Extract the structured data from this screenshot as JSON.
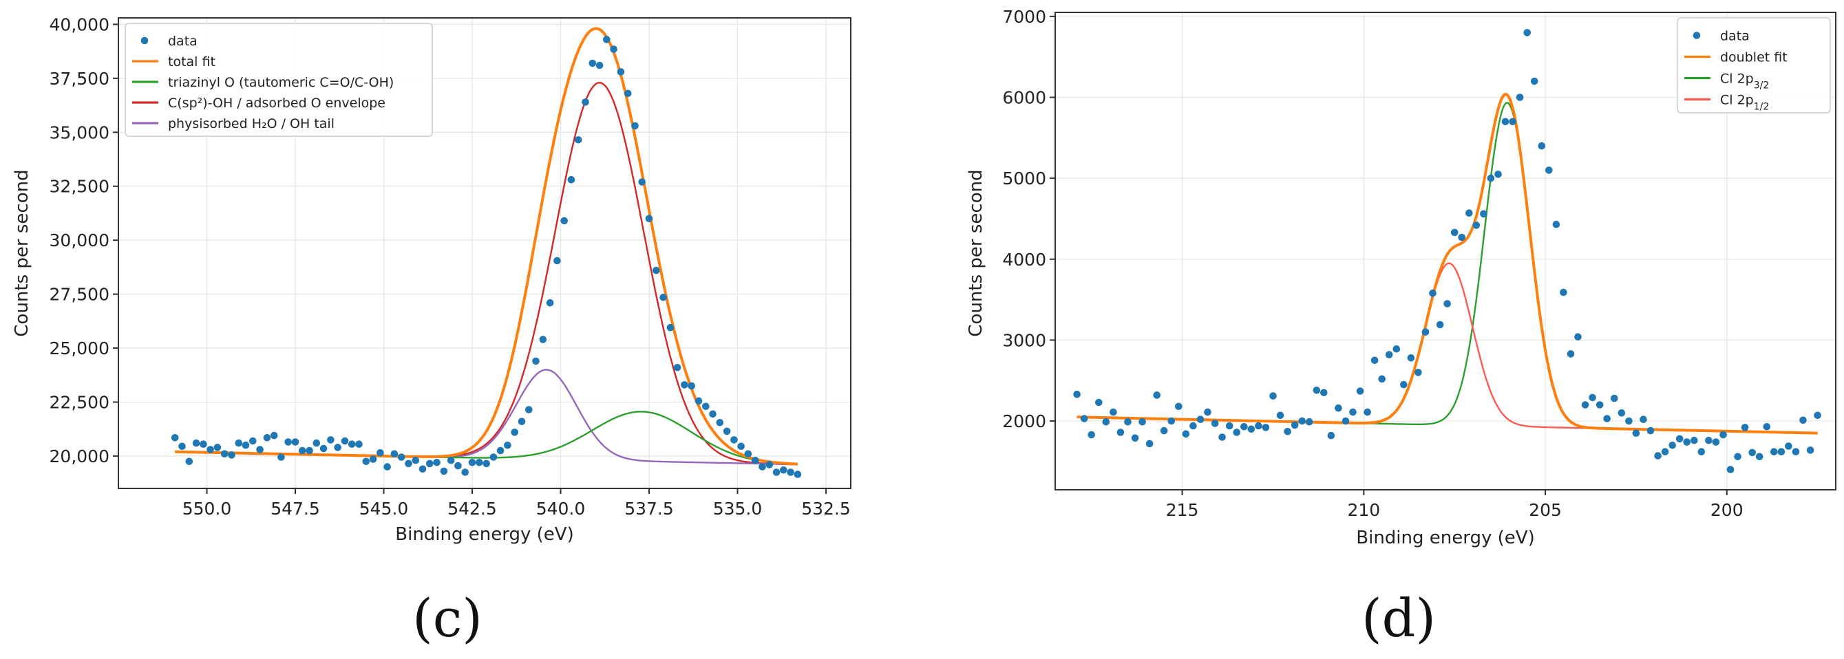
{
  "chart_data": [
    {
      "type": "scatter",
      "panel_label": "(c)",
      "xlabel": "Binding energy (eV)",
      "ylabel": "Counts per second",
      "xlim": [
        552.5,
        531.8
      ],
      "ylim": [
        18500,
        40300
      ],
      "x_reversed": true,
      "grid": true,
      "legend": "top-left",
      "xticks": [
        550,
        547.5,
        545,
        542.5,
        540,
        537.5,
        535,
        532.5
      ],
      "xtick_labels": [
        "550.0",
        "547.5",
        "545.0",
        "542.5",
        "540.0",
        "537.5",
        "535.0",
        "532.5"
      ],
      "yticks": [
        20000,
        22500,
        25000,
        27500,
        30000,
        32500,
        35000,
        37500,
        40000
      ],
      "ytick_labels": [
        "20,000",
        "22,500",
        "25,000",
        "27,500",
        "30,000",
        "32,500",
        "35,000",
        "37,500",
        "40,000"
      ],
      "legend_entries": [
        {
          "label": "data",
          "color": "#1f77b4",
          "kind": "marker"
        },
        {
          "label": "total fit",
          "color": "#ff7f0e",
          "kind": "line"
        },
        {
          "label": "triazinyl O (tautomeric C=O/C-OH)",
          "color": "#2ca02c",
          "kind": "line"
        },
        {
          "label": "C(sp²)-OH / adsorbed O envelope",
          "color": "#d62728",
          "kind": "line"
        },
        {
          "label": "physisorbed H₂O / OH tail",
          "color": "#9467bd",
          "kind": "line"
        }
      ],
      "data": {
        "name": "data",
        "color": "#1f77b4",
        "x": [
          550.9,
          550.7,
          550.5,
          550.3,
          550.1,
          549.9,
          549.7,
          549.5,
          549.3,
          549.1,
          548.9,
          548.7,
          548.5,
          548.3,
          548.1,
          547.9,
          547.7,
          547.5,
          547.3,
          547.1,
          546.9,
          546.7,
          546.5,
          546.3,
          546.1,
          545.9,
          545.7,
          545.5,
          545.3,
          545.1,
          544.9,
          544.7,
          544.5,
          544.3,
          544.1,
          543.9,
          543.7,
          543.5,
          543.3,
          543.1,
          542.9,
          542.7,
          542.5,
          542.3,
          542.1,
          541.9,
          541.7,
          541.5,
          541.3,
          541.1,
          540.9,
          540.7,
          540.5,
          540.3,
          540.1,
          539.9,
          539.7,
          539.5,
          539.3,
          539.1,
          538.9,
          538.7,
          538.5,
          538.3,
          538.1,
          537.9,
          537.7,
          537.5,
          537.3,
          537.1,
          536.9,
          536.7,
          536.5,
          536.3,
          536.1,
          535.9,
          535.7,
          535.5,
          535.3,
          535.1,
          534.9,
          534.7,
          534.5,
          534.3,
          534.1,
          533.9,
          533.7,
          533.5,
          533.3
        ],
        "y": [
          20850,
          20450,
          19750,
          20600,
          20550,
          20300,
          20400,
          20100,
          20050,
          20600,
          20500,
          20700,
          20300,
          20850,
          20950,
          19950,
          20650,
          20650,
          20250,
          20250,
          20600,
          20350,
          20750,
          20400,
          20700,
          20550,
          20550,
          19750,
          19850,
          20150,
          19500,
          20100,
          19950,
          19650,
          19800,
          19400,
          19650,
          19700,
          19300,
          19800,
          19550,
          19250,
          19700,
          19700,
          19650,
          19950,
          20250,
          20500,
          21100,
          21600,
          22150,
          24400,
          25400,
          27100,
          29050,
          30900,
          32800,
          34650,
          36400,
          38200,
          38100,
          39300,
          38850,
          37800,
          36800,
          35300,
          32700,
          31000,
          28600,
          27350,
          25950,
          24100,
          23300,
          23250,
          22550,
          22300,
          21950,
          21550,
          21150,
          20750,
          20450,
          20100,
          19800,
          19500,
          19600,
          19250,
          19350,
          19250,
          19150
        ]
      },
      "fit_params": {
        "baseline": {
          "a_at_551": 20200,
          "b_at_533": 19600
        },
        "components": [
          {
            "name": "C(sp²)-OH / adsorbed O envelope",
            "center": 538.9,
            "amplitude": 17500,
            "sigma": 1.25
          },
          {
            "name": "physisorbed H₂O / OH tail",
            "center": 540.4,
            "amplitude": 4150,
            "sigma": 0.85
          },
          {
            "name": "triazinyl O (tautomeric C=O/C-OH)",
            "center": 537.7,
            "amplitude": 2300,
            "sigma": 1.4
          }
        ]
      }
    },
    {
      "type": "scatter",
      "panel_label": "(d)",
      "xlabel": "Binding energy (eV)",
      "ylabel": "Counts per second",
      "xlim": [
        218.5,
        197
      ],
      "ylim": [
        1150,
        7050
      ],
      "x_reversed": true,
      "grid": true,
      "legend": "top-right",
      "xticks": [
        215,
        210,
        205,
        200
      ],
      "xtick_labels": [
        "215",
        "210",
        "205",
        "200"
      ],
      "yticks": [
        2000,
        3000,
        4000,
        5000,
        6000,
        7000
      ],
      "ytick_labels": [
        "2000",
        "3000",
        "4000",
        "5000",
        "6000",
        "7000"
      ],
      "legend_entries": [
        {
          "label": "data",
          "color": "#1f77b4",
          "kind": "marker"
        },
        {
          "label": "doublet fit",
          "color": "#ff7f0e",
          "kind": "line"
        },
        {
          "label": "Cl 2p",
          "sub": "3/2",
          "color": "#2ca02c",
          "kind": "line"
        },
        {
          "label": "Cl 2p",
          "sub": "1/2",
          "color": "#ff5a50",
          "kind": "line"
        }
      ],
      "data": {
        "name": "data",
        "color": "#1f77b4",
        "x": [
          217.9,
          217.7,
          217.5,
          217.3,
          217.1,
          216.9,
          216.7,
          216.5,
          216.3,
          216.1,
          215.9,
          215.7,
          215.5,
          215.3,
          215.1,
          214.9,
          214.7,
          214.5,
          214.3,
          214.1,
          213.9,
          213.7,
          213.5,
          213.3,
          213.1,
          212.9,
          212.7,
          212.5,
          212.3,
          212.1,
          211.9,
          211.7,
          211.5,
          211.3,
          211.1,
          210.9,
          210.7,
          210.5,
          210.3,
          210.1,
          209.9,
          209.7,
          209.5,
          209.3,
          209.1,
          208.9,
          208.7,
          208.5,
          208.3,
          208.1,
          207.9,
          207.7,
          207.5,
          207.3,
          207.1,
          206.9,
          206.7,
          206.5,
          206.3,
          206.1,
          205.9,
          205.7,
          205.5,
          205.3,
          205.1,
          204.9,
          204.7,
          204.5,
          204.3,
          204.1,
          203.9,
          203.7,
          203.5,
          203.3,
          203.1,
          202.9,
          202.7,
          202.5,
          202.3,
          202.1,
          201.9,
          201.7,
          201.5,
          201.3,
          201.1,
          200.9,
          200.7,
          200.5,
          200.3,
          200.1,
          199.9,
          199.7,
          199.5,
          199.3,
          199.1,
          198.9,
          198.7,
          198.5,
          198.3,
          198.1,
          197.9,
          197.7,
          197.5
        ],
        "y": [
          2330,
          2030,
          1830,
          2230,
          1990,
          2110,
          1860,
          1990,
          1790,
          1990,
          1720,
          2320,
          1880,
          2000,
          2180,
          1840,
          1940,
          2020,
          2110,
          1970,
          1800,
          1940,
          1860,
          1930,
          1900,
          1940,
          1920,
          2310,
          2070,
          1870,
          1950,
          2000,
          1990,
          2380,
          2350,
          1820,
          2160,
          2000,
          2110,
          2370,
          2110,
          2750,
          2520,
          2820,
          2890,
          2450,
          2780,
          2600,
          3100,
          3580,
          3190,
          3450,
          4330,
          4270,
          4570,
          4420,
          4560,
          5000,
          5050,
          5700,
          5700,
          6000,
          6800,
          6200,
          5400,
          5100,
          4430,
          3590,
          2830,
          3040,
          2200,
          2290,
          2200,
          2030,
          2280,
          2100,
          2000,
          1850,
          2020,
          1880,
          1570,
          1620,
          1700,
          1780,
          1740,
          1760,
          1620,
          1760,
          1740,
          1830,
          1400,
          1560,
          1920,
          1610,
          1560,
          1930,
          1620,
          1620,
          1690,
          1620,
          2010,
          1640,
          2070
        ]
      },
      "fit_params": {
        "baseline": {
          "a_at_218": 2050,
          "b_at_197.5": 1850
        },
        "components": [
          {
            "name": "Cl 2p3/2",
            "center": 206.05,
            "amplitude": 4000,
            "sigma": 0.62
          },
          {
            "name": "Cl 2p1/2",
            "center": 207.65,
            "amplitude": 2000,
            "sigma": 0.65
          }
        ]
      }
    }
  ]
}
